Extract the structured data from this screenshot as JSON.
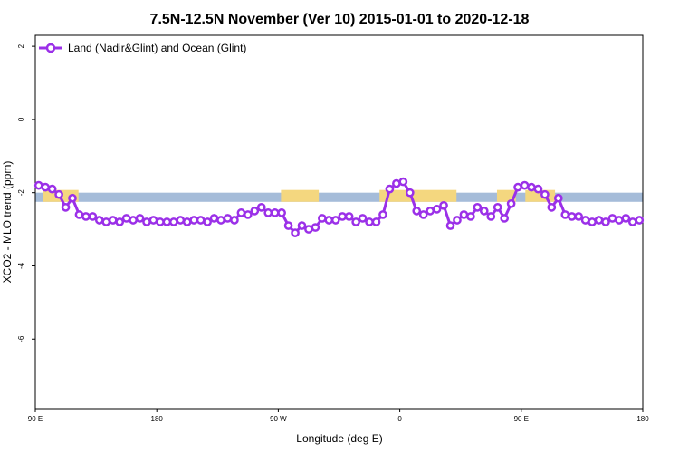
{
  "chart_data": {
    "type": "line",
    "title": "7.5N-12.5N November (Ver 10)   2015-01-01 to 2020-12-18",
    "xlabel": "Longitude (deg E)",
    "ylabel": "XCO2 - MLO trend (ppm)",
    "xlim": [
      90,
      540
    ],
    "ylim": [
      -7.9,
      2.3
    ],
    "x_ticks": [
      {
        "value": 90,
        "label": "90 E"
      },
      {
        "value": 180,
        "label": "180"
      },
      {
        "value": 270,
        "label": "90 W"
      },
      {
        "value": 360,
        "label": "0"
      },
      {
        "value": 450,
        "label": "90 E"
      },
      {
        "value": 540,
        "label": "180"
      }
    ],
    "y_ticks": [
      {
        "value": 2,
        "label": "2"
      },
      {
        "value": 0,
        "label": "0"
      },
      {
        "value": -2,
        "label": "-2"
      },
      {
        "value": -4,
        "label": "-4"
      },
      {
        "value": -6,
        "label": "-6"
      }
    ],
    "grid": false,
    "legend_position": "top-left",
    "surface_band": {
      "y_top": -2.0,
      "y_bottom": -2.25,
      "ocean_color": "#a5bcd9",
      "land_color": "#f4d77f",
      "land_segments": [
        [
          96,
          122
        ],
        [
          272,
          300
        ],
        [
          345,
          402
        ],
        [
          432,
          446
        ],
        [
          453,
          475
        ]
      ]
    },
    "series": [
      {
        "name": "Land (Nadir&Glint) and Ocean (Glint)",
        "color": "#9b30e8",
        "x": [
          92.5,
          97.5,
          102.5,
          107.5,
          112.5,
          117.5,
          122.5,
          127.5,
          132.5,
          137.5,
          142.5,
          147.5,
          152.5,
          157.5,
          162.5,
          167.5,
          172.5,
          177.5,
          182.5,
          187.5,
          192.5,
          197.5,
          202.5,
          207.5,
          212.5,
          217.5,
          222.5,
          227.5,
          232.5,
          237.5,
          242.5,
          247.5,
          252.5,
          257.5,
          262.5,
          267.5,
          272.5,
          277.5,
          282.5,
          287.5,
          292.5,
          297.5,
          302.5,
          307.5,
          312.5,
          317.5,
          322.5,
          327.5,
          332.5,
          337.5,
          342.5,
          347.5,
          352.5,
          357.5,
          362.5,
          367.5,
          372.5,
          377.5,
          382.5,
          387.5,
          392.5,
          397.5,
          402.5,
          407.5,
          412.5,
          417.5,
          422.5,
          427.5,
          432.5,
          437.5,
          442.5,
          447.5,
          452.5,
          457.5,
          462.5,
          467.5,
          472.5,
          477.5,
          482.5,
          487.5,
          492.5,
          497.5,
          502.5,
          507.5,
          512.5,
          517.5,
          522.5,
          527.5,
          532.5,
          537.5
        ],
        "y": [
          -1.8,
          -1.85,
          -1.9,
          -2.05,
          -2.4,
          -2.15,
          -2.6,
          -2.65,
          -2.65,
          -2.75,
          -2.8,
          -2.75,
          -2.8,
          -2.7,
          -2.75,
          -2.7,
          -2.8,
          -2.75,
          -2.8,
          -2.8,
          -2.8,
          -2.75,
          -2.8,
          -2.75,
          -2.75,
          -2.8,
          -2.7,
          -2.75,
          -2.7,
          -2.75,
          -2.55,
          -2.6,
          -2.5,
          -2.4,
          -2.55,
          -2.55,
          -2.55,
          -2.9,
          -3.1,
          -2.9,
          -3.0,
          -2.95,
          -2.7,
          -2.75,
          -2.75,
          -2.65,
          -2.65,
          -2.8,
          -2.7,
          -2.8,
          -2.8,
          -2.6,
          -1.9,
          -1.75,
          -1.7,
          -2.0,
          -2.5,
          -2.6,
          -2.5,
          -2.45,
          -2.35,
          -2.9,
          -2.75,
          -2.6,
          -2.65,
          -2.4,
          -2.5,
          -2.65,
          -2.4,
          -2.7,
          -2.3,
          -1.85,
          -1.8,
          -1.85,
          -1.9,
          -2.05,
          -2.4,
          -2.15,
          -2.6,
          -2.65,
          -2.65,
          -2.75,
          -2.8,
          -2.75,
          -2.8,
          -2.7,
          -2.75,
          -2.7,
          -2.8,
          -2.75
        ]
      }
    ]
  }
}
